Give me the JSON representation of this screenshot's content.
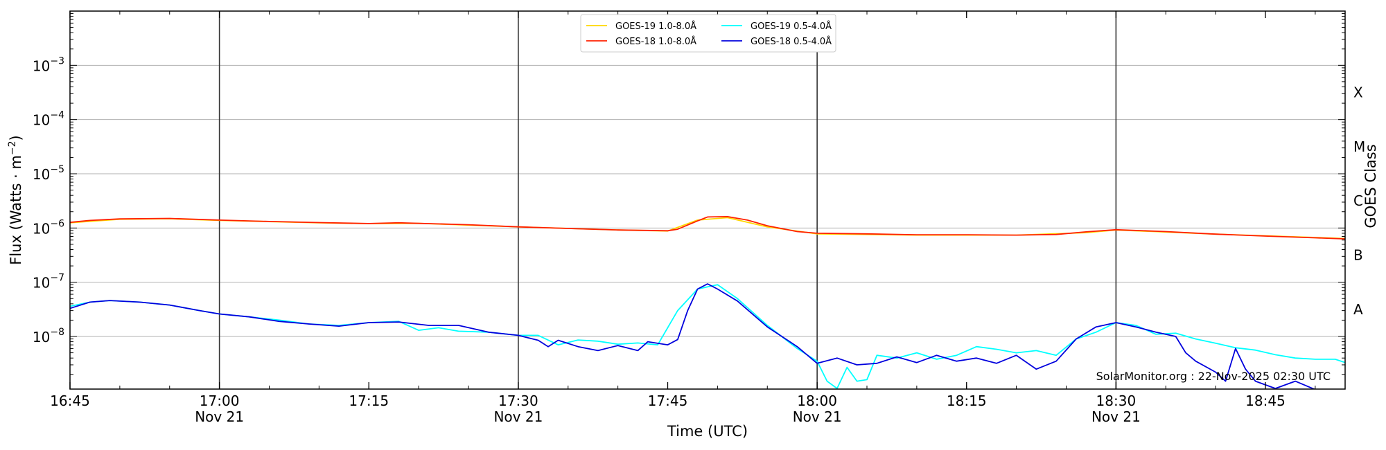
{
  "chart_data": {
    "type": "line",
    "xlabel": "Time (UTC)",
    "ylabel": "Flux (Watts · m",
    "ylabel_sup": "−2",
    "ylabel_close": ")",
    "y2label": "GOES Class",
    "credit": "SolarMonitor.org : 22-Nov-2025 02:30 UTC",
    "x_range": [
      "16:45",
      "18:53"
    ],
    "y_log": true,
    "y_range_exponent": [
      -8.97,
      -2.0
    ],
    "grid": "horizontal",
    "legend_placement": "top-center",
    "x_ticks": [
      {
        "t": "16:45",
        "label": "16:45",
        "sub": ""
      },
      {
        "t": "17:00",
        "label": "17:00",
        "sub": "Nov 21"
      },
      {
        "t": "17:15",
        "label": "17:15",
        "sub": ""
      },
      {
        "t": "17:30",
        "label": "17:30",
        "sub": "Nov 21"
      },
      {
        "t": "17:45",
        "label": "17:45",
        "sub": ""
      },
      {
        "t": "18:00",
        "label": "18:00",
        "sub": "Nov 21"
      },
      {
        "t": "18:15",
        "label": "18:15",
        "sub": ""
      },
      {
        "t": "18:30",
        "label": "18:30",
        "sub": "Nov 21"
      },
      {
        "t": "18:45",
        "label": "18:45",
        "sub": ""
      }
    ],
    "y_ticks": [
      {
        "exp": -8,
        "base": "10",
        "sup": "−8"
      },
      {
        "exp": -7,
        "base": "10",
        "sup": "−7"
      },
      {
        "exp": -6,
        "base": "10",
        "sup": "−6"
      },
      {
        "exp": -5,
        "base": "10",
        "sup": "−5"
      },
      {
        "exp": -4,
        "base": "10",
        "sup": "−4"
      },
      {
        "exp": -3,
        "base": "10",
        "sup": "−3"
      }
    ],
    "goes_classes": [
      {
        "label": "A",
        "exp": -7.5
      },
      {
        "label": "B",
        "exp": -6.5
      },
      {
        "label": "C",
        "exp": -5.5
      },
      {
        "label": "M",
        "exp": -4.5
      },
      {
        "label": "X",
        "exp": -3.5
      }
    ],
    "vlines": [
      "17:00",
      "17:30",
      "18:00",
      "18:30"
    ],
    "series": [
      {
        "name": "GOES-19 1.0-8.0Å",
        "color": "#ffd700",
        "legend_col": 0,
        "legend_row": 0,
        "points": [
          [
            "16:45",
            1.25e-06
          ],
          [
            "16:50",
            1.45e-06
          ],
          [
            "16:55",
            1.48e-06
          ],
          [
            "17:00",
            1.38e-06
          ],
          [
            "17:10",
            1.25e-06
          ],
          [
            "17:15",
            1.2e-06
          ],
          [
            "17:20",
            1.22e-06
          ],
          [
            "17:30",
            1.05e-06
          ],
          [
            "17:40",
            9.2e-07
          ],
          [
            "17:45",
            8.8e-07
          ],
          [
            "17:48",
            1.4e-06
          ],
          [
            "17:51",
            1.55e-06
          ],
          [
            "17:55",
            1.05e-06
          ],
          [
            "18:00",
            7.8e-07
          ],
          [
            "18:10",
            7.4e-07
          ],
          [
            "18:20",
            7.4e-07
          ],
          [
            "18:27",
            8.2e-07
          ],
          [
            "18:30",
            9.2e-07
          ],
          [
            "18:40",
            7.7e-07
          ],
          [
            "18:53",
            6.4e-07
          ]
        ]
      },
      {
        "name": "GOES-18 1.0-8.0Å",
        "color": "#ff2000",
        "legend_col": 0,
        "legend_row": 1,
        "points": [
          [
            "16:45",
            1.27e-06
          ],
          [
            "16:47",
            1.38e-06
          ],
          [
            "16:50",
            1.47e-06
          ],
          [
            "16:55",
            1.5e-06
          ],
          [
            "17:00",
            1.4e-06
          ],
          [
            "17:05",
            1.32e-06
          ],
          [
            "17:10",
            1.26e-06
          ],
          [
            "17:15",
            1.21e-06
          ],
          [
            "17:18",
            1.25e-06
          ],
          [
            "17:25",
            1.15e-06
          ],
          [
            "17:30",
            1.05e-06
          ],
          [
            "17:35",
            9.8e-07
          ],
          [
            "17:40",
            9.2e-07
          ],
          [
            "17:45",
            8.9e-07
          ],
          [
            "17:46",
            9.5e-07
          ],
          [
            "17:48",
            1.35e-06
          ],
          [
            "17:49",
            1.6e-06
          ],
          [
            "17:51",
            1.62e-06
          ],
          [
            "17:53",
            1.4e-06
          ],
          [
            "17:55",
            1.1e-06
          ],
          [
            "17:58",
            8.6e-07
          ],
          [
            "18:00",
            8e-07
          ],
          [
            "18:05",
            7.8e-07
          ],
          [
            "18:10",
            7.5e-07
          ],
          [
            "18:15",
            7.5e-07
          ],
          [
            "18:20",
            7.4e-07
          ],
          [
            "18:24",
            7.6e-07
          ],
          [
            "18:27",
            8.5e-07
          ],
          [
            "18:30",
            9.3e-07
          ],
          [
            "18:35",
            8.6e-07
          ],
          [
            "18:40",
            7.7e-07
          ],
          [
            "18:45",
            7.1e-07
          ],
          [
            "18:50",
            6.6e-07
          ],
          [
            "18:53",
            6.3e-07
          ]
        ]
      },
      {
        "name": "GOES-19 0.5-4.0Å",
        "color": "#00ffff",
        "legend_col": 1,
        "legend_row": 0,
        "points": [
          [
            "16:45",
            3.6e-08
          ],
          [
            "16:47",
            4.3e-08
          ],
          [
            "16:49",
            4.6e-08
          ],
          [
            "16:52",
            4.3e-08
          ],
          [
            "16:55",
            3.8e-08
          ],
          [
            "16:58",
            3e-08
          ],
          [
            "17:00",
            2.6e-08
          ],
          [
            "17:03",
            2.3e-08
          ],
          [
            "17:06",
            2e-08
          ],
          [
            "17:09",
            1.7e-08
          ],
          [
            "17:12",
            1.6e-08
          ],
          [
            "17:15",
            1.8e-08
          ],
          [
            "17:18",
            1.9e-08
          ],
          [
            "17:20",
            1.3e-08
          ],
          [
            "17:22",
            1.45e-08
          ],
          [
            "17:24",
            1.25e-08
          ],
          [
            "17:27",
            1.2e-08
          ],
          [
            "17:30",
            1.05e-08
          ],
          [
            "17:32",
            1.05e-08
          ],
          [
            "17:34",
            7e-09
          ],
          [
            "17:36",
            8.6e-09
          ],
          [
            "17:38",
            8.2e-09
          ],
          [
            "17:40",
            7.2e-09
          ],
          [
            "17:42",
            7.6e-09
          ],
          [
            "17:44",
            7e-09
          ],
          [
            "17:46",
            3e-08
          ],
          [
            "17:48",
            7.5e-08
          ],
          [
            "17:50",
            9e-08
          ],
          [
            "17:52",
            5e-08
          ],
          [
            "17:55",
            1.6e-08
          ],
          [
            "17:58",
            6e-09
          ],
          [
            "18:00",
            3.5e-09
          ],
          [
            "18:01",
            1.5e-09
          ],
          [
            "18:02",
            1.1e-09
          ],
          [
            "18:03",
            2.7e-09
          ],
          [
            "18:04",
            1.5e-09
          ],
          [
            "18:05",
            1.6e-09
          ],
          [
            "18:06",
            4.5e-09
          ],
          [
            "18:08",
            4e-09
          ],
          [
            "18:10",
            5e-09
          ],
          [
            "18:12",
            3.8e-09
          ],
          [
            "18:14",
            4.5e-09
          ],
          [
            "18:16",
            6.5e-09
          ],
          [
            "18:18",
            5.8e-09
          ],
          [
            "18:20",
            5e-09
          ],
          [
            "18:22",
            5.5e-09
          ],
          [
            "18:24",
            4.5e-09
          ],
          [
            "18:26",
            9e-09
          ],
          [
            "18:28",
            1.2e-08
          ],
          [
            "18:30",
            1.8e-08
          ],
          [
            "18:32",
            1.6e-08
          ],
          [
            "18:34",
            1.1e-08
          ],
          [
            "18:36",
            1.15e-08
          ],
          [
            "18:38",
            9e-09
          ],
          [
            "18:40",
            7.5e-09
          ],
          [
            "18:42",
            6.2e-09
          ],
          [
            "18:44",
            5.6e-09
          ],
          [
            "18:46",
            4.6e-09
          ],
          [
            "18:48",
            4e-09
          ],
          [
            "18:50",
            3.8e-09
          ],
          [
            "18:52",
            3.8e-09
          ],
          [
            "18:53",
            3.3e-09
          ]
        ]
      },
      {
        "name": "GOES-18 0.5-4.0Å",
        "color": "#0000dd",
        "legend_col": 1,
        "legend_row": 1,
        "points": [
          [
            "16:45",
            3.3e-08
          ],
          [
            "16:47",
            4.3e-08
          ],
          [
            "16:49",
            4.6e-08
          ],
          [
            "16:52",
            4.3e-08
          ],
          [
            "16:55",
            3.8e-08
          ],
          [
            "16:58",
            3e-08
          ],
          [
            "17:00",
            2.6e-08
          ],
          [
            "17:03",
            2.3e-08
          ],
          [
            "17:06",
            1.9e-08
          ],
          [
            "17:09",
            1.7e-08
          ],
          [
            "17:12",
            1.55e-08
          ],
          [
            "17:15",
            1.8e-08
          ],
          [
            "17:18",
            1.85e-08
          ],
          [
            "17:21",
            1.6e-08
          ],
          [
            "17:24",
            1.6e-08
          ],
          [
            "17:27",
            1.2e-08
          ],
          [
            "17:30",
            1.05e-08
          ],
          [
            "17:32",
            8.5e-09
          ],
          [
            "17:33",
            6.5e-09
          ],
          [
            "17:34",
            8.5e-09
          ],
          [
            "17:36",
            6.5e-09
          ],
          [
            "17:38",
            5.5e-09
          ],
          [
            "17:40",
            6.8e-09
          ],
          [
            "17:42",
            5.5e-09
          ],
          [
            "17:43",
            8e-09
          ],
          [
            "17:45",
            7e-09
          ],
          [
            "17:46",
            8.8e-09
          ],
          [
            "17:47",
            3e-08
          ],
          [
            "17:48",
            7.5e-08
          ],
          [
            "17:49",
            9.3e-08
          ],
          [
            "17:50",
            7.5e-08
          ],
          [
            "17:52",
            4.5e-08
          ],
          [
            "17:55",
            1.5e-08
          ],
          [
            "17:58",
            6.5e-09
          ],
          [
            "18:00",
            3.2e-09
          ],
          [
            "18:02",
            4e-09
          ],
          [
            "18:04",
            3e-09
          ],
          [
            "18:06",
            3.2e-09
          ],
          [
            "18:08",
            4.2e-09
          ],
          [
            "18:10",
            3.3e-09
          ],
          [
            "18:12",
            4.5e-09
          ],
          [
            "18:14",
            3.5e-09
          ],
          [
            "18:16",
            4e-09
          ],
          [
            "18:18",
            3.2e-09
          ],
          [
            "18:20",
            4.5e-09
          ],
          [
            "18:22",
            2.5e-09
          ],
          [
            "18:24",
            3.5e-09
          ],
          [
            "18:26",
            9e-09
          ],
          [
            "18:28",
            1.5e-08
          ],
          [
            "18:30",
            1.8e-08
          ],
          [
            "18:32",
            1.5e-08
          ],
          [
            "18:34",
            1.2e-08
          ],
          [
            "18:36",
            1e-08
          ],
          [
            "18:37",
            5e-09
          ],
          [
            "18:38",
            3.5e-09
          ],
          [
            "18:40",
            2.2e-09
          ],
          [
            "18:41",
            1.5e-09
          ],
          [
            "18:42",
            6e-09
          ],
          [
            "18:43",
            2.5e-09
          ],
          [
            "18:44",
            1.5e-09
          ],
          [
            "18:46",
            1.1e-09
          ],
          [
            "18:48",
            1.5e-09
          ],
          [
            "18:50",
            1.05e-09
          ],
          [
            "18:53",
            1e-09
          ]
        ]
      }
    ]
  }
}
